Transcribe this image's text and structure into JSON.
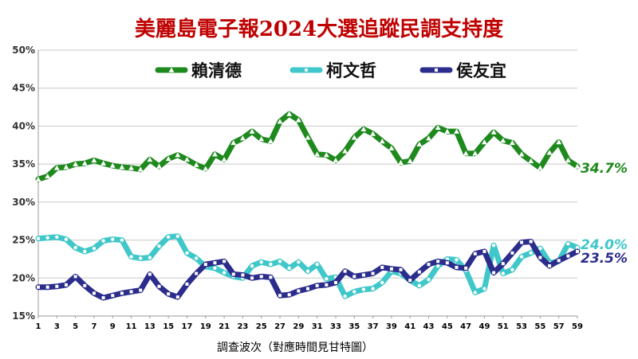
{
  "chart_data": {
    "type": "line",
    "title": "美麗島電子報2024大選追蹤民調支持度",
    "xlabel": "調查波次（對應時間見甘特圖）",
    "ylabel": "",
    "x": [
      1,
      2,
      3,
      4,
      5,
      6,
      7,
      8,
      9,
      10,
      11,
      12,
      13,
      14,
      15,
      16,
      17,
      18,
      19,
      20,
      21,
      22,
      23,
      24,
      25,
      26,
      27,
      28,
      29,
      30,
      31,
      32,
      33,
      34,
      35,
      36,
      37,
      38,
      39,
      40,
      41,
      42,
      43,
      44,
      45,
      46,
      47,
      48,
      49,
      50,
      51,
      52,
      53,
      54,
      55,
      56,
      57,
      58,
      59
    ],
    "x_tick_labels": [
      "1",
      "3",
      "5",
      "7",
      "9",
      "11",
      "13",
      "15",
      "17",
      "19",
      "21",
      "23",
      "25",
      "27",
      "29",
      "31",
      "33",
      "35",
      "37",
      "39",
      "41",
      "43",
      "45",
      "47",
      "49",
      "51",
      "53",
      "55",
      "57",
      "59"
    ],
    "y_tick_labels": [
      "15%",
      "20%",
      "25%",
      "30%",
      "35%",
      "40%",
      "45%",
      "50%"
    ],
    "ylim": [
      15,
      50
    ],
    "grid": "horizontal",
    "legend_position": "top",
    "series": [
      {
        "name": "賴清德",
        "color": "#1e8a1e",
        "marker": "triangle",
        "end_label": "34.7%",
        "values": [
          33.0,
          33.4,
          34.5,
          34.6,
          35.0,
          35.1,
          35.5,
          35.1,
          34.8,
          34.6,
          34.5,
          34.3,
          35.6,
          34.7,
          35.7,
          36.2,
          35.6,
          34.9,
          34.4,
          36.3,
          35.6,
          37.8,
          38.4,
          39.3,
          38.3,
          38.0,
          40.6,
          41.6,
          40.8,
          38.5,
          36.3,
          36.2,
          35.5,
          36.7,
          38.5,
          39.6,
          39.0,
          38.0,
          37.1,
          35.2,
          35.4,
          37.6,
          38.4,
          39.8,
          39.3,
          39.3,
          36.4,
          36.4,
          37.9,
          39.2,
          38.1,
          37.8,
          36.3,
          35.4,
          34.5,
          36.5,
          37.9,
          35.5,
          34.7
        ]
      },
      {
        "name": "柯文哲",
        "color": "#3fc7c9",
        "marker": "circle",
        "end_label": "24.0%",
        "values": [
          25.2,
          25.3,
          25.4,
          25.1,
          24.0,
          23.5,
          23.9,
          24.9,
          25.1,
          25.0,
          22.8,
          22.6,
          22.7,
          24.2,
          25.4,
          25.5,
          23.3,
          22.6,
          21.5,
          21.3,
          20.7,
          20.2,
          20.0,
          21.6,
          22.1,
          21.8,
          22.2,
          21.3,
          22.1,
          20.9,
          21.8,
          19.9,
          20.1,
          17.6,
          18.2,
          18.5,
          18.6,
          19.4,
          20.9,
          20.6,
          19.7,
          19.0,
          19.8,
          21.6,
          22.5,
          22.4,
          21.0,
          18.1,
          18.6,
          24.3,
          20.6,
          21.1,
          22.8,
          23.3,
          23.9,
          22.0,
          22.2,
          24.5,
          24.0
        ]
      },
      {
        "name": "侯友宜",
        "color": "#2b2c8c",
        "marker": "square",
        "end_label": "23.5%",
        "values": [
          18.8,
          18.8,
          18.9,
          19.1,
          20.2,
          19.0,
          18.0,
          17.4,
          17.7,
          18.0,
          18.2,
          18.4,
          20.5,
          18.9,
          17.9,
          17.5,
          19.2,
          20.6,
          21.8,
          22.0,
          22.2,
          20.5,
          20.4,
          20.0,
          20.2,
          20.1,
          17.7,
          17.8,
          18.3,
          18.6,
          19.0,
          19.1,
          19.4,
          20.9,
          20.2,
          20.4,
          20.6,
          21.4,
          21.2,
          21.1,
          19.7,
          20.8,
          21.8,
          22.2,
          22.0,
          21.4,
          21.3,
          23.2,
          23.5,
          20.7,
          21.9,
          23.3,
          24.7,
          24.8,
          22.7,
          21.6,
          22.3,
          22.9,
          23.5
        ]
      }
    ]
  }
}
